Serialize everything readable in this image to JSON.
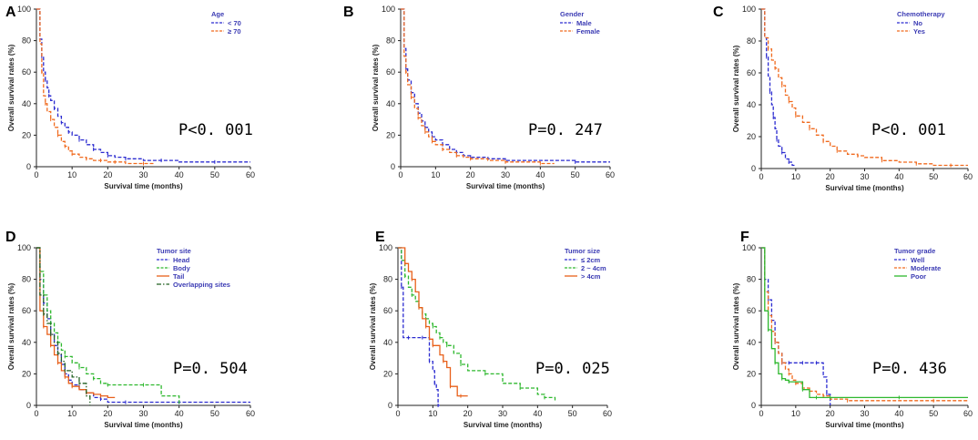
{
  "chart_data": [
    {
      "panel": "A",
      "type": "line",
      "xlabel": "Survival time (months)",
      "ylabel": "Overall survival rates (%)",
      "xlim": [
        0,
        60
      ],
      "ylim": [
        0,
        100
      ],
      "xticks": [
        0,
        10,
        20,
        30,
        40,
        50,
        60
      ],
      "yticks": [
        0,
        20,
        40,
        60,
        80,
        100
      ],
      "legend_title": "Age",
      "p_value": "P<0. 001",
      "series": [
        {
          "name": "< 70",
          "color": "#2b2bd0",
          "style": "dashed",
          "x": [
            0,
            1,
            1.5,
            2,
            2.5,
            3,
            3.5,
            4,
            5,
            6,
            7,
            8,
            9,
            10,
            12,
            14,
            16,
            18,
            20,
            22,
            25,
            30,
            35,
            40,
            50,
            60
          ],
          "y": [
            100,
            81,
            70,
            60,
            55,
            50,
            45,
            42,
            37,
            32,
            28,
            25,
            22,
            20,
            17,
            14,
            11,
            9,
            7,
            6,
            5,
            4,
            4,
            3,
            3,
            3
          ]
        },
        {
          "name": "≥ 70",
          "color": "#f06a1e",
          "style": "dashed",
          "x": [
            0,
            1,
            1.5,
            2,
            2.5,
            3,
            4,
            5,
            6,
            7,
            8,
            9,
            10,
            12,
            14,
            16,
            18,
            20,
            22,
            25,
            30,
            33
          ],
          "y": [
            100,
            78,
            60,
            45,
            40,
            35,
            30,
            25,
            20,
            16,
            13,
            10,
            8,
            6,
            5,
            4,
            4,
            3,
            3,
            2,
            2,
            2
          ]
        }
      ]
    },
    {
      "panel": "B",
      "type": "line",
      "xlabel": "Survival time (months)",
      "ylabel": "Overall survival rates (%)",
      "xlim": [
        0,
        60
      ],
      "ylim": [
        0,
        100
      ],
      "xticks": [
        0,
        10,
        20,
        30,
        40,
        50,
        60
      ],
      "yticks": [
        0,
        20,
        40,
        60,
        80,
        100
      ],
      "legend_title": "Gender",
      "p_value": "P=0. 247",
      "series": [
        {
          "name": "Male",
          "color": "#2b2bd0",
          "style": "dashed",
          "x": [
            0,
            1,
            1.5,
            2,
            3,
            4,
            5,
            6,
            7,
            8,
            9,
            10,
            12,
            14,
            16,
            18,
            20,
            25,
            30,
            40,
            50,
            60
          ],
          "y": [
            100,
            75,
            62,
            55,
            47,
            40,
            34,
            29,
            25,
            22,
            19,
            17,
            14,
            11,
            9,
            7,
            6,
            5,
            4,
            4,
            3,
            3
          ]
        },
        {
          "name": "Female",
          "color": "#f06a1e",
          "style": "dashed",
          "x": [
            0,
            1,
            1.5,
            2,
            3,
            4,
            5,
            6,
            7,
            8,
            9,
            10,
            12,
            14,
            16,
            18,
            20,
            25,
            30,
            35,
            40,
            44
          ],
          "y": [
            100,
            70,
            60,
            52,
            44,
            37,
            31,
            26,
            22,
            19,
            16,
            14,
            11,
            9,
            7,
            6,
            5,
            4,
            3,
            3,
            2,
            2
          ]
        }
      ]
    },
    {
      "panel": "C",
      "type": "line",
      "xlabel": "Survival time (months)",
      "ylabel": "Overall survival rates (%)",
      "xlim": [
        0,
        60
      ],
      "ylim": [
        0,
        100
      ],
      "xticks": [
        0,
        10,
        20,
        30,
        40,
        50,
        60
      ],
      "yticks": [
        0,
        20,
        40,
        60,
        80,
        100
      ],
      "legend_title": "Chemotherapy",
      "p_value": "P<0. 001",
      "series": [
        {
          "name": "No",
          "color": "#2b2bd0",
          "style": "dashed",
          "x": [
            0,
            1,
            1.5,
            2,
            2.5,
            3,
            3.5,
            4,
            4.5,
            5,
            6,
            7,
            8,
            9,
            10
          ],
          "y": [
            100,
            82,
            70,
            58,
            48,
            40,
            32,
            25,
            18,
            14,
            10,
            6,
            4,
            2,
            2
          ]
        },
        {
          "name": "Yes",
          "color": "#f06a1e",
          "style": "dashed",
          "x": [
            0,
            1,
            2,
            3,
            4,
            5,
            6,
            7,
            8,
            9,
            10,
            12,
            14,
            16,
            18,
            20,
            22,
            25,
            28,
            30,
            35,
            40,
            45,
            50,
            55,
            60
          ],
          "y": [
            100,
            82,
            75,
            68,
            63,
            57,
            52,
            46,
            42,
            38,
            33,
            29,
            25,
            21,
            17,
            14,
            11,
            9,
            8,
            7,
            5,
            4,
            3,
            2,
            2,
            2
          ]
        }
      ]
    },
    {
      "panel": "D",
      "type": "line",
      "xlabel": "Survival time (months)",
      "ylabel": "Overall survival rates (%)",
      "xlim": [
        0,
        60
      ],
      "ylim": [
        0,
        100
      ],
      "xticks": [
        0,
        10,
        20,
        30,
        40,
        50,
        60
      ],
      "yticks": [
        0,
        20,
        40,
        60,
        80,
        100
      ],
      "legend_title": "Tumor site",
      "p_value": "P=0. 504",
      "series": [
        {
          "name": "Head",
          "color": "#2b2bd0",
          "style": "dashed",
          "x": [
            0,
            1,
            2,
            3,
            4,
            5,
            6,
            7,
            8,
            9,
            10,
            12,
            14,
            16,
            18,
            20,
            25,
            30,
            40,
            50,
            60
          ],
          "y": [
            100,
            80,
            65,
            55,
            45,
            38,
            32,
            26,
            20,
            16,
            13,
            10,
            8,
            5,
            4,
            2,
            2,
            2,
            2,
            2,
            2
          ]
        },
        {
          "name": "Body",
          "color": "#2eb82e",
          "style": "dashed",
          "x": [
            0,
            1,
            2,
            3,
            4,
            5,
            6,
            7,
            8,
            10,
            12,
            14,
            16,
            18,
            20,
            25,
            30,
            35,
            40
          ],
          "y": [
            100,
            85,
            70,
            60,
            52,
            46,
            40,
            35,
            31,
            27,
            24,
            20,
            17,
            14,
            13,
            13,
            13,
            6,
            0
          ]
        },
        {
          "name": "Tail",
          "color": "#e8601a",
          "style": "solid",
          "x": [
            0,
            1,
            2,
            3,
            4,
            5,
            6,
            7,
            8,
            9,
            10,
            12,
            14,
            16,
            18,
            20,
            22
          ],
          "y": [
            100,
            60,
            50,
            45,
            38,
            32,
            27,
            22,
            18,
            14,
            12,
            10,
            8,
            7,
            6,
            5,
            5
          ]
        },
        {
          "name": "Overlapping sites",
          "color": "#226022",
          "style": "dashdot",
          "x": [
            0,
            1,
            2,
            3,
            4,
            5,
            6,
            7,
            8,
            10,
            12,
            14,
            15
          ],
          "y": [
            100,
            70,
            58,
            52,
            45,
            40,
            33,
            28,
            22,
            18,
            14,
            6,
            0
          ]
        }
      ]
    },
    {
      "panel": "E",
      "type": "line",
      "xlabel": "Survival time (months)",
      "ylabel": "Overall survival rates (%)",
      "xlim": [
        0,
        60
      ],
      "ylim": [
        0,
        100
      ],
      "xticks": [
        0,
        10,
        20,
        30,
        40,
        50,
        60
      ],
      "yticks": [
        0,
        20,
        40,
        60,
        80,
        100
      ],
      "legend_title": "Tumor size",
      "p_value": "P=0. 025",
      "series": [
        {
          "name": "≤ 2cm",
          "color": "#2b2bd0",
          "style": "dashed",
          "x": [
            0,
            0.8,
            1,
            1.5,
            3,
            5,
            7,
            8,
            9,
            10,
            10.5,
            11,
            11.5,
            12
          ],
          "y": [
            100,
            100,
            75,
            43,
            43,
            43,
            43,
            43,
            28,
            22,
            14,
            10,
            0,
            0
          ]
        },
        {
          "name": "2 ~ 4cm",
          "color": "#2eb82e",
          "style": "dashed",
          "x": [
            0,
            1,
            2,
            3,
            4,
            5,
            6,
            7,
            8,
            9,
            10,
            11,
            12,
            13,
            14,
            16,
            18,
            20,
            25,
            30,
            35,
            40,
            42,
            45
          ],
          "y": [
            100,
            92,
            82,
            75,
            70,
            66,
            62,
            58,
            55,
            52,
            50,
            46,
            43,
            40,
            38,
            33,
            26,
            22,
            20,
            14,
            11,
            7,
            5,
            3
          ]
        },
        {
          "name": "> 4cm",
          "color": "#e8601a",
          "style": "solid",
          "x": [
            0,
            1,
            2,
            3,
            4,
            5,
            6,
            7,
            8,
            9,
            10,
            12,
            13,
            14,
            15,
            17,
            18,
            20
          ],
          "y": [
            100,
            100,
            90,
            85,
            80,
            72,
            62,
            55,
            50,
            42,
            38,
            32,
            28,
            24,
            12,
            6,
            6,
            6
          ]
        }
      ]
    },
    {
      "panel": "F",
      "type": "line",
      "xlabel": "Survival time (months)",
      "ylabel": "Overall survival rates (%)",
      "xlim": [
        0,
        60
      ],
      "ylim": [
        0,
        100
      ],
      "xticks": [
        0,
        10,
        20,
        30,
        40,
        50,
        60
      ],
      "yticks": [
        0,
        20,
        40,
        60,
        80,
        100
      ],
      "legend_title": "Tumor grade",
      "p_value": "P=0. 436",
      "series": [
        {
          "name": "Well",
          "color": "#2b2bd0",
          "style": "dashed",
          "x": [
            0,
            1,
            2,
            3,
            4,
            5,
            6,
            7,
            8,
            10,
            12,
            14,
            16,
            18,
            19,
            20
          ],
          "y": [
            100,
            80,
            67,
            54,
            40,
            33,
            27,
            27,
            27,
            27,
            27,
            27,
            27,
            18,
            7,
            0
          ]
        },
        {
          "name": "Moderate",
          "color": "#f06a1e",
          "style": "dashed",
          "x": [
            0,
            1,
            2,
            3,
            4,
            5,
            6,
            7,
            8,
            9,
            10,
            12,
            14,
            16,
            18,
            20,
            25,
            40,
            50,
            60
          ],
          "y": [
            100,
            72,
            57,
            47,
            40,
            33,
            27,
            23,
            20,
            16,
            14,
            11,
            9,
            7,
            6,
            4,
            3,
            3,
            3,
            3
          ]
        },
        {
          "name": "Poor",
          "color": "#2eb82e",
          "style": "solid",
          "x": [
            0,
            1,
            2,
            3,
            4,
            5,
            6,
            7,
            8,
            10,
            12,
            14,
            16,
            18,
            20,
            30,
            40,
            50,
            60
          ],
          "y": [
            100,
            60,
            48,
            36,
            27,
            20,
            17,
            16,
            15,
            15,
            10,
            5,
            5,
            5,
            5,
            5,
            5,
            5,
            5
          ]
        }
      ]
    }
  ]
}
